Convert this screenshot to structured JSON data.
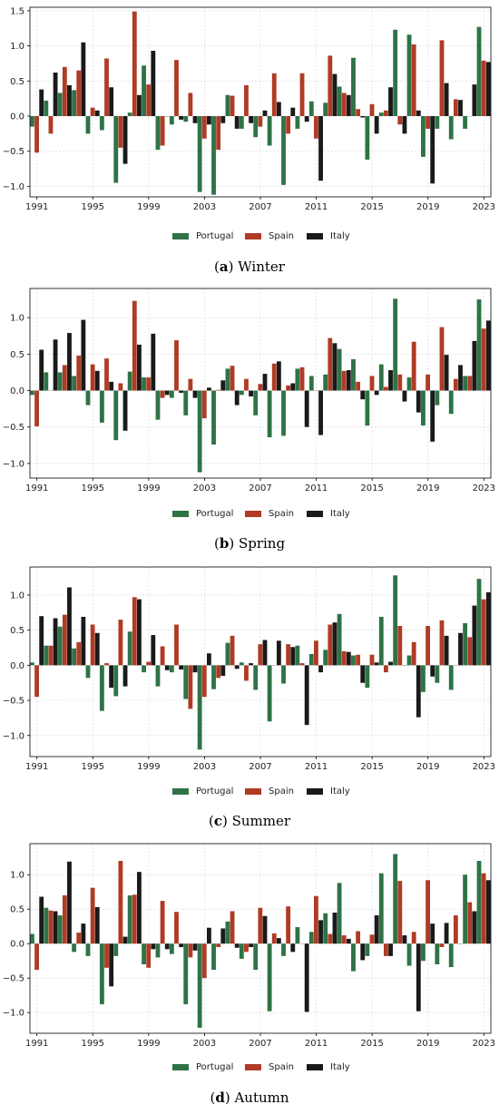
{
  "colors": {
    "Portugal": "#2e7346",
    "Spain": "#b03b25",
    "Italy": "#1a1a1a",
    "grid": "#d7d7d7",
    "axis": "#000000"
  },
  "chart_data": [
    {
      "type": "bar",
      "panel_letter": "a",
      "panel_name": "Winter",
      "x": [
        1991,
        1992,
        1993,
        1994,
        1995,
        1996,
        1997,
        1998,
        1999,
        2000,
        2001,
        2002,
        2003,
        2004,
        2005,
        2006,
        2007,
        2008,
        2009,
        2010,
        2011,
        2012,
        2013,
        2014,
        2015,
        2016,
        2017,
        2018,
        2019,
        2020,
        2021,
        2022,
        2023
      ],
      "xticks": [
        "1991",
        "1995",
        "1999",
        "2003",
        "2007",
        "2011",
        "2015",
        "2019",
        "2023"
      ],
      "xtick_values": [
        1991,
        1995,
        1999,
        2003,
        2007,
        2011,
        2015,
        2019,
        2023
      ],
      "yticks": [
        "1.5",
        "1.0",
        "0.5",
        "0.0",
        "−0.5",
        "−1.0"
      ],
      "ytick_values": [
        1.5,
        1.0,
        0.5,
        0.0,
        -0.5,
        -1.0
      ],
      "ylim": [
        -1.15,
        1.55
      ],
      "series": [
        {
          "name": "Portugal",
          "values": [
            -0.15,
            0.22,
            0.33,
            0.37,
            -0.25,
            -0.2,
            -0.95,
            0.05,
            0.72,
            -0.48,
            -0.12,
            -0.08,
            -1.08,
            -1.12,
            0.3,
            -0.18,
            -0.3,
            -0.42,
            -0.98,
            -0.18,
            0.21,
            0.19,
            0.42,
            0.83,
            -0.62,
            0.05,
            1.23,
            1.16,
            -0.58,
            -0.18,
            -0.33,
            -0.18,
            1.27
          ]
        },
        {
          "name": "Spain",
          "values": [
            -0.52,
            -0.25,
            0.7,
            0.65,
            0.12,
            0.82,
            -0.45,
            1.49,
            0.45,
            -0.42,
            0.8,
            0.33,
            -0.32,
            -0.48,
            0.29,
            0.44,
            -0.15,
            0.61,
            -0.25,
            0.61,
            -0.32,
            0.86,
            0.33,
            0.1,
            0.17,
            0.08,
            -0.12,
            1.02,
            -0.18,
            1.08,
            0.24,
            0.0,
            0.79
          ]
        },
        {
          "name": "Italy",
          "values": [
            0.38,
            0.62,
            0.44,
            1.05,
            0.08,
            0.41,
            -0.68,
            0.3,
            0.93,
            0.0,
            -0.05,
            -0.1,
            -0.12,
            -0.1,
            -0.18,
            -0.1,
            0.08,
            0.2,
            0.12,
            -0.08,
            -0.92,
            0.6,
            0.3,
            -0.02,
            -0.25,
            0.41,
            -0.25,
            0.08,
            -0.96,
            0.47,
            0.23,
            0.45,
            0.77
          ]
        }
      ],
      "legend": "bottom-center",
      "grid": true
    },
    {
      "type": "bar",
      "panel_letter": "b",
      "panel_name": "Spring",
      "x": [
        1991,
        1992,
        1993,
        1994,
        1995,
        1996,
        1997,
        1998,
        1999,
        2000,
        2001,
        2002,
        2003,
        2004,
        2005,
        2006,
        2007,
        2008,
        2009,
        2010,
        2011,
        2012,
        2013,
        2014,
        2015,
        2016,
        2017,
        2018,
        2019,
        2020,
        2021,
        2022,
        2023
      ],
      "xticks": [
        "1991",
        "1995",
        "1999",
        "2003",
        "2007",
        "2011",
        "2015",
        "2019",
        "2023"
      ],
      "xtick_values": [
        1991,
        1995,
        1999,
        2003,
        2007,
        2011,
        2015,
        2019,
        2023
      ],
      "yticks": [
        "1.0",
        "0.5",
        "0.0",
        "−0.5",
        "−1.0"
      ],
      "ytick_values": [
        1.0,
        0.5,
        0.0,
        -0.5,
        -1.0
      ],
      "ylim": [
        -1.2,
        1.4
      ],
      "series": [
        {
          "name": "Portugal",
          "values": [
            -0.06,
            0.25,
            0.25,
            0.2,
            -0.2,
            -0.44,
            -0.68,
            0.26,
            0.18,
            -0.4,
            -0.1,
            -0.34,
            -1.12,
            -0.74,
            0.3,
            -0.06,
            -0.34,
            -0.64,
            -0.62,
            0.3,
            0.2,
            0.22,
            0.57,
            0.43,
            -0.48,
            0.36,
            1.26,
            0.18,
            -0.48,
            -0.2,
            -0.32,
            0.2,
            1.25
          ]
        },
        {
          "name": "Spain",
          "values": [
            -0.49,
            0.0,
            0.35,
            0.48,
            0.36,
            0.44,
            0.1,
            1.23,
            0.18,
            -0.1,
            0.69,
            0.16,
            -0.38,
            0.01,
            0.34,
            0.16,
            0.09,
            0.37,
            0.07,
            0.32,
            0.0,
            0.72,
            0.27,
            0.12,
            0.2,
            0.05,
            0.22,
            0.67,
            0.22,
            0.87,
            0.16,
            0.2,
            0.85
          ]
        },
        {
          "name": "Italy",
          "values": [
            0.56,
            0.7,
            0.79,
            0.97,
            0.27,
            0.12,
            -0.55,
            0.63,
            0.78,
            -0.06,
            -0.03,
            -0.1,
            0.04,
            0.14,
            -0.2,
            -0.08,
            0.23,
            0.4,
            0.1,
            -0.5,
            -0.61,
            0.65,
            0.28,
            -0.12,
            -0.06,
            0.28,
            -0.15,
            -0.3,
            -0.7,
            0.49,
            0.35,
            0.68,
            0.96
          ]
        }
      ],
      "legend": "bottom-center",
      "grid": true
    },
    {
      "type": "bar",
      "panel_letter": "c",
      "panel_name": "Summer",
      "x": [
        1991,
        1992,
        1993,
        1994,
        1995,
        1996,
        1997,
        1998,
        1999,
        2000,
        2001,
        2002,
        2003,
        2004,
        2005,
        2006,
        2007,
        2008,
        2009,
        2010,
        2011,
        2012,
        2013,
        2014,
        2015,
        2016,
        2017,
        2018,
        2019,
        2020,
        2021,
        2022,
        2023
      ],
      "xticks": [
        "1991",
        "1995",
        "1999",
        "2003",
        "2007",
        "2011",
        "2015",
        "2019",
        "2023"
      ],
      "xtick_values": [
        1991,
        1995,
        1999,
        2003,
        2007,
        2011,
        2015,
        2019,
        2023
      ],
      "yticks": [
        "1.0",
        "0.5",
        "0.0",
        "−0.5",
        "−1.0"
      ],
      "ytick_values": [
        1.0,
        0.5,
        0.0,
        -0.5,
        -1.0
      ],
      "ylim": [
        -1.3,
        1.4
      ],
      "series": [
        {
          "name": "Portugal",
          "values": [
            0.04,
            0.28,
            0.55,
            0.24,
            -0.18,
            -0.65,
            -0.44,
            0.48,
            -0.1,
            -0.3,
            -0.1,
            -0.48,
            -1.2,
            -0.34,
            0.32,
            0.04,
            -0.35,
            -0.8,
            -0.26,
            0.28,
            0.16,
            0.22,
            0.73,
            0.14,
            -0.32,
            0.69,
            1.28,
            0.14,
            -0.38,
            -0.25,
            -0.35,
            0.6,
            1.23
          ]
        },
        {
          "name": "Spain",
          "values": [
            -0.45,
            0.28,
            0.72,
            0.33,
            0.58,
            0.03,
            0.65,
            0.97,
            0.05,
            0.27,
            0.58,
            -0.62,
            -0.45,
            -0.18,
            0.42,
            -0.22,
            0.3,
            0.0,
            0.3,
            0.03,
            0.35,
            0.58,
            0.2,
            0.15,
            0.15,
            -0.1,
            0.56,
            0.33,
            0.56,
            0.64,
            0.0,
            0.4,
            0.94
          ]
        },
        {
          "name": "Italy",
          "values": [
            0.7,
            0.67,
            1.11,
            0.69,
            0.46,
            -0.32,
            -0.3,
            0.94,
            0.43,
            -0.07,
            -0.06,
            -0.1,
            0.17,
            -0.15,
            -0.05,
            0.03,
            0.36,
            0.35,
            0.26,
            -0.85,
            -0.1,
            0.61,
            0.19,
            -0.25,
            0.04,
            0.05,
            0.0,
            -0.74,
            -0.16,
            0.42,
            0.46,
            0.85,
            1.04
          ]
        }
      ],
      "legend": "bottom-center",
      "grid": true
    },
    {
      "type": "bar",
      "panel_letter": "d",
      "panel_name": "Autumn",
      "x": [
        1991,
        1992,
        1993,
        1994,
        1995,
        1996,
        1997,
        1998,
        1999,
        2000,
        2001,
        2002,
        2003,
        2004,
        2005,
        2006,
        2007,
        2008,
        2009,
        2010,
        2011,
        2012,
        2013,
        2014,
        2015,
        2016,
        2017,
        2018,
        2019,
        2020,
        2021,
        2022,
        2023
      ],
      "xticks": [
        "1991",
        "1995",
        "1999",
        "2003",
        "2007",
        "2011",
        "2015",
        "2019",
        "2023"
      ],
      "xtick_values": [
        1991,
        1995,
        1999,
        2003,
        2007,
        2011,
        2015,
        2019,
        2023
      ],
      "yticks": [
        "1.0",
        "0.5",
        "0.0",
        "−0.5",
        "−1.0"
      ],
      "ytick_values": [
        1.0,
        0.5,
        0.0,
        -0.5,
        -1.0
      ],
      "ylim": [
        -1.3,
        1.45
      ],
      "series": [
        {
          "name": "Portugal",
          "values": [
            0.14,
            0.52,
            0.41,
            -0.12,
            -0.18,
            -0.88,
            -0.18,
            0.7,
            -0.3,
            -0.2,
            -0.15,
            -0.88,
            -1.22,
            -0.38,
            0.32,
            -0.22,
            -0.38,
            -0.98,
            -0.18,
            0.24,
            0.17,
            0.44,
            0.88,
            -0.4,
            -0.18,
            1.02,
            1.3,
            -0.32,
            -0.25,
            -0.3,
            -0.34,
            1.0,
            1.2
          ]
        },
        {
          "name": "Spain",
          "values": [
            -0.38,
            0.48,
            0.7,
            0.16,
            0.81,
            -0.35,
            1.2,
            0.71,
            -0.35,
            0.62,
            0.46,
            -0.2,
            -0.5,
            -0.05,
            0.47,
            -0.12,
            0.52,
            0.15,
            0.54,
            0.0,
            0.69,
            0.14,
            0.12,
            0.18,
            0.13,
            -0.18,
            0.91,
            0.17,
            0.92,
            -0.05,
            0.41,
            0.6,
            1.02
          ]
        },
        {
          "name": "Italy",
          "values": [
            0.68,
            0.47,
            1.19,
            0.29,
            0.53,
            -0.62,
            0.1,
            1.04,
            -0.08,
            -0.08,
            -0.05,
            -0.1,
            0.23,
            0.22,
            -0.06,
            -0.05,
            0.4,
            0.08,
            -0.12,
            -0.99,
            0.34,
            0.45,
            0.07,
            -0.24,
            0.41,
            -0.18,
            0.12,
            -0.98,
            0.29,
            0.3,
            0.0,
            0.47,
            0.92
          ]
        }
      ],
      "legend": "bottom-center",
      "grid": true
    }
  ]
}
